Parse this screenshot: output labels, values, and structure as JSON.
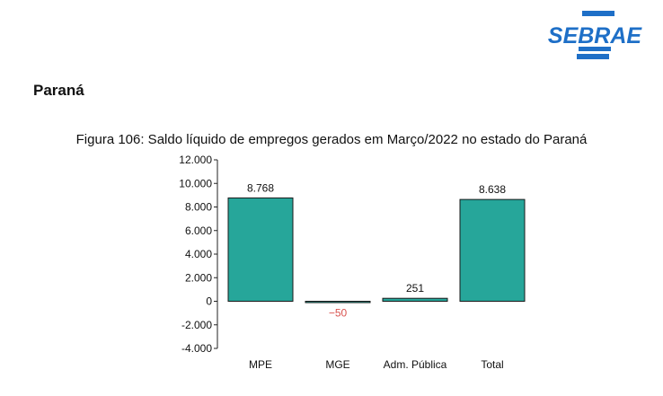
{
  "header": {
    "logo_text": "SEBRAE",
    "section_title": "Paraná"
  },
  "colors": {
    "bar": "#26a69a",
    "bar_stroke": "#1a1a1a",
    "negative_label": "#d9534f",
    "positive_label": "#111111",
    "logo_blue": "#1e6fc7"
  },
  "chart_data": {
    "type": "bar",
    "title": "Figura 106: Saldo líquido de empregos gerados em Março/2022 no estado do Paraná",
    "categories": [
      "MPE",
      "MGE",
      "Adm. Pública",
      "Total"
    ],
    "values": [
      8768,
      -50,
      251,
      8638
    ],
    "value_labels": [
      "8.768",
      "−50",
      "251",
      "8.638"
    ],
    "ylim": [
      -4000,
      12000
    ],
    "yticks": [
      12000,
      10000,
      8000,
      6000,
      4000,
      2000,
      0,
      -2000,
      -4000
    ],
    "ytick_labels": [
      "12.000",
      "10.000",
      "8.000",
      "6.000",
      "4.000",
      "2.000",
      "0",
      "-2.000",
      "-4.000"
    ],
    "xlabel": "",
    "ylabel": "",
    "grid": false,
    "legend": "none"
  }
}
